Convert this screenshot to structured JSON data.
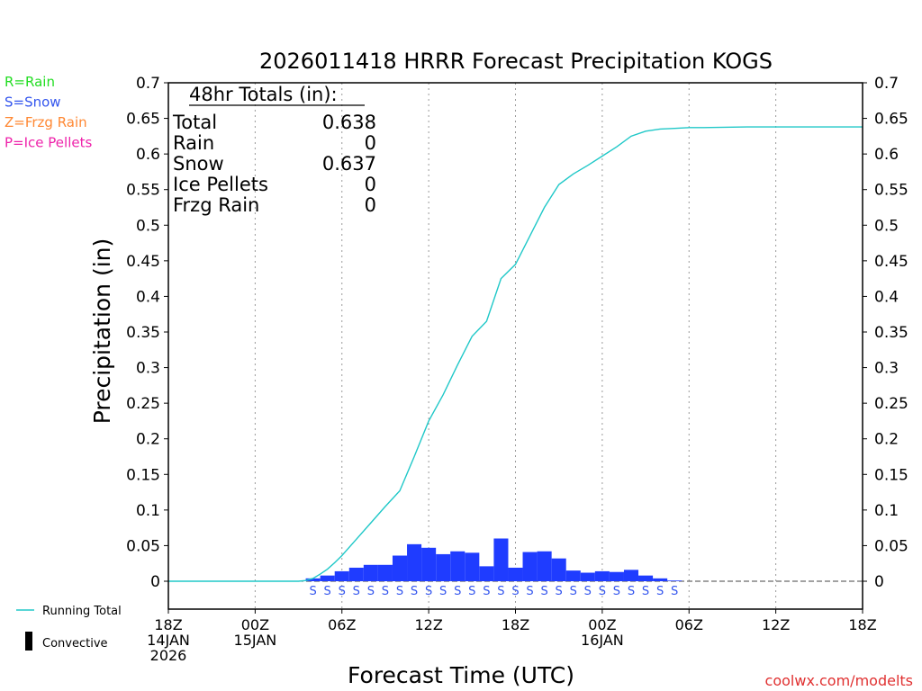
{
  "chart_data": {
    "type": "bar",
    "title": "2026011418 HRRR Forecast Precipitation KOGS",
    "xlabel": "Forecast Time (UTC)",
    "ylabel": "Precipitation (in)",
    "ylim": [
      0,
      0.7
    ],
    "xlim": [
      0,
      48
    ],
    "grid": true,
    "yticks": [
      0,
      0.05,
      0.1,
      0.15,
      0.2,
      0.25,
      0.3,
      0.35,
      0.4,
      0.45,
      0.5,
      0.55,
      0.6,
      0.65,
      0.7
    ],
    "ytick_labels": [
      "0",
      "0.05",
      "0.1",
      "0.15",
      "0.2",
      "0.25",
      "0.3",
      "0.35",
      "0.4",
      "0.45",
      "0.5",
      "0.55",
      "0.6",
      "0.65",
      "0.7"
    ],
    "xticks": [
      {
        "hour": 0,
        "lines": [
          "18Z",
          "14JAN",
          "2026"
        ]
      },
      {
        "hour": 6,
        "lines": [
          "00Z",
          "15JAN"
        ]
      },
      {
        "hour": 12,
        "lines": [
          "06Z"
        ]
      },
      {
        "hour": 18,
        "lines": [
          "12Z"
        ]
      },
      {
        "hour": 24,
        "lines": [
          "18Z"
        ]
      },
      {
        "hour": 30,
        "lines": [
          "00Z",
          "16JAN"
        ]
      },
      {
        "hour": 36,
        "lines": [
          "06Z"
        ]
      },
      {
        "hour": 42,
        "lines": [
          "12Z"
        ]
      },
      {
        "hour": 48,
        "lines": [
          "18Z"
        ]
      }
    ],
    "hourly_precip": {
      "name": "Snow (hourly)",
      "color": "#1f3cff",
      "start_hour": 10,
      "values": [
        0.004,
        0.008,
        0.014,
        0.019,
        0.023,
        0.023,
        0.036,
        0.052,
        0.047,
        0.038,
        0.042,
        0.04,
        0.021,
        0.06,
        0.019,
        0.041,
        0.042,
        0.032,
        0.015,
        0.012,
        0.014,
        0.013,
        0.016,
        0.008,
        0.004,
        0.001
      ]
    },
    "ptype_markers": {
      "symbol": "S",
      "color": "#3355ee",
      "hours": [
        10,
        11,
        12,
        13,
        14,
        15,
        16,
        17,
        18,
        19,
        20,
        21,
        22,
        23,
        24,
        25,
        26,
        27,
        28,
        29,
        30,
        31,
        32,
        33,
        34,
        35
      ]
    },
    "running_total": {
      "name": "Running Total",
      "color": "#20c8c8",
      "x": [
        0,
        9,
        9.5,
        10,
        10.5,
        11,
        11.5,
        12,
        13,
        14,
        15,
        16,
        17,
        18,
        19,
        20,
        21,
        22,
        23,
        24,
        25,
        26,
        27,
        28,
        29,
        30,
        31,
        32,
        33,
        34,
        35,
        36,
        37,
        40,
        44,
        48
      ],
      "y": [
        0,
        0,
        0.001,
        0.004,
        0.01,
        0.017,
        0.026,
        0.036,
        0.059,
        0.082,
        0.105,
        0.127,
        0.175,
        0.225,
        0.262,
        0.304,
        0.344,
        0.365,
        0.425,
        0.445,
        0.485,
        0.525,
        0.557,
        0.572,
        0.584,
        0.597,
        0.61,
        0.625,
        0.632,
        0.635,
        0.636,
        0.637,
        0.637,
        0.638,
        0.638,
        0.638
      ]
    },
    "totals_box": {
      "heading": "48hr Totals (in):",
      "rows": [
        {
          "label": "Total",
          "value": "0.638"
        },
        {
          "label": "Rain",
          "value": "0"
        },
        {
          "label": "Snow",
          "value": "0.637"
        },
        {
          "label": "Ice Pellets",
          "value": "0"
        },
        {
          "label": "Frzg Rain",
          "value": "0"
        }
      ]
    },
    "ptype_legend": [
      {
        "text": "R=Rain",
        "color": "#22dd22"
      },
      {
        "text": "S=Snow",
        "color": "#3355ee"
      },
      {
        "text": "Z=Frzg Rain",
        "color": "#ff8833"
      },
      {
        "text": "P=Ice Pellets",
        "color": "#ee22aa"
      }
    ],
    "series_legend": [
      {
        "text": "Running Total",
        "kind": "line",
        "color": "#20c8c8"
      },
      {
        "text": "Convective",
        "kind": "bar",
        "color": "#000000"
      }
    ],
    "credit": "coolwx.com/modelts"
  }
}
